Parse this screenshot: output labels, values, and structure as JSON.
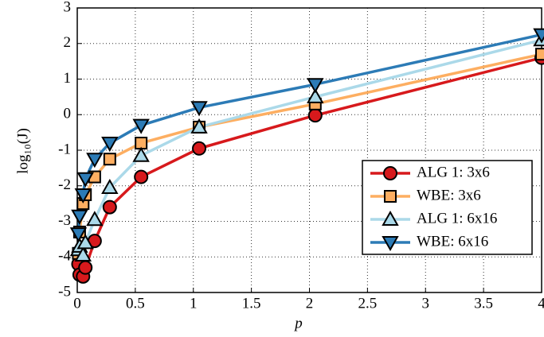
{
  "chart_data": {
    "type": "line",
    "x_label": "p",
    "y_label": "log₁₀(J)",
    "x": [
      0.01,
      0.02,
      0.05,
      0.07,
      0.15,
      0.28,
      0.55,
      1.05,
      2.05,
      4.0
    ],
    "series": [
      {
        "name": "ALG 1: 3x6",
        "color": "#d7191c",
        "marker": "circle",
        "values": [
          -4.2,
          -4.5,
          -4.55,
          -4.3,
          -3.55,
          -2.6,
          -1.75,
          -0.95,
          -0.02,
          1.6
        ]
      },
      {
        "name": "WBE: 3x6",
        "color": "#fdae61",
        "marker": "square",
        "values": [
          -3.9,
          -3.3,
          -2.5,
          -2.25,
          -1.75,
          -1.25,
          -0.8,
          -0.35,
          0.3,
          1.7
        ]
      },
      {
        "name": "ALG 1: 6x16",
        "color": "#abd9e9",
        "marker": "triangle-up",
        "values": [
          -3.8,
          -3.7,
          -3.95,
          -3.6,
          -2.95,
          -2.05,
          -1.15,
          -0.35,
          0.5,
          2.1
        ]
      },
      {
        "name": "WBE: 6x16",
        "color": "#2c7bb6",
        "marker": "triangle-down",
        "values": [
          -3.35,
          -2.85,
          -2.25,
          -1.8,
          -1.25,
          -0.8,
          -0.3,
          0.2,
          0.85,
          2.25
        ]
      }
    ],
    "xlim": [
      0,
      4
    ],
    "xticks": [
      0,
      0.5,
      1,
      1.5,
      2,
      2.5,
      3,
      3.5,
      4
    ],
    "ylim": [
      -5,
      3
    ],
    "yticks": [
      -5,
      -4,
      -3,
      -2,
      -1,
      0,
      1,
      2,
      3
    ],
    "grid": true,
    "legend_position": "lower right"
  }
}
